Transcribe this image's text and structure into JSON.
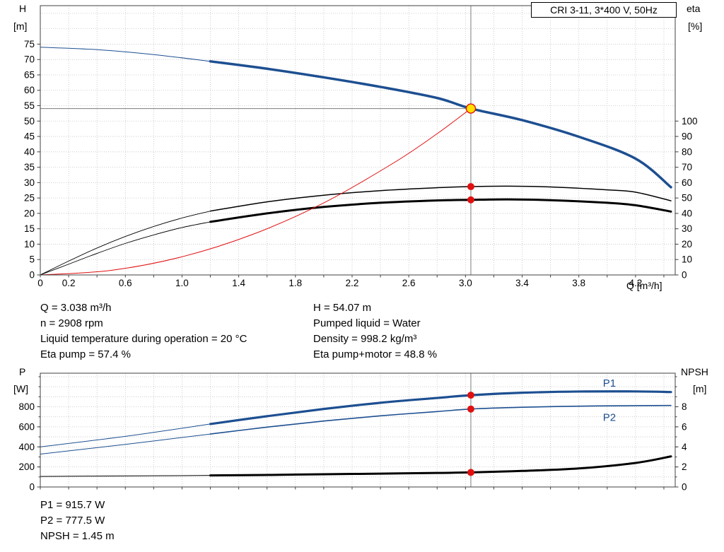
{
  "header": {
    "title_box": "CRI 3-11, 3*400 V, 50Hz"
  },
  "axis_labels": {
    "h": "H",
    "h_unit": "[m]",
    "eta": "eta",
    "eta_unit": "[%]",
    "q": "Q [m³/h]",
    "p": "P",
    "p_unit": "[W]",
    "npsh": "NPSH",
    "npsh_unit": "[m]"
  },
  "info_left": [
    "Q = 3.038 m³/h",
    "n = 2908 rpm",
    "Liquid temperature during operation = 20 °C",
    "Eta pump = 57.4 %"
  ],
  "info_right": [
    "H = 54.07 m",
    "Pumped liquid = Water",
    "Density = 998.2 kg/m³",
    "Eta pump+motor = 48.8 %"
  ],
  "bottom_info": [
    "P1 = 915.7 W",
    "P2 = 777.5 W",
    "NPSH = 1.45 m"
  ],
  "duty_point": {
    "Q_m3h": 3.038,
    "H_m": 54.07,
    "n_rpm": 2908,
    "eta_pump_pct": 57.4,
    "eta_pump_motor_pct": 48.8,
    "P1_W": 915.7,
    "P2_W": 777.5,
    "NPSH_m": 1.45
  },
  "colors": {
    "blue": "#1d4f91",
    "black": "#000000",
    "red": "#e01010",
    "yellow": "#ffe000",
    "grid": "#c2c2c2",
    "helper": "#7d7d7d"
  },
  "chart_data": [
    {
      "type": "line",
      "name": "head-efficiency-chart",
      "title": "CRI 3-11, 3*400 V, 50Hz",
      "x": {
        "label": "Q [m³/h]",
        "min": 0,
        "max": 4.48,
        "grid_step": 0.2,
        "label_ticks": [
          0,
          0.2,
          0.6,
          1,
          1.4,
          1.8,
          2.2,
          2.6,
          3,
          3.4,
          3.8,
          4.2
        ]
      },
      "y_left": {
        "label": "H [m]",
        "min": 0,
        "max": 87.5,
        "grid_step": 5,
        "grid_max": 85,
        "label_ticks": [
          0,
          5,
          10,
          15,
          20,
          25,
          30,
          35,
          40,
          45,
          50,
          55,
          60,
          65,
          70,
          75
        ]
      },
      "y_right": {
        "label": "eta [%]",
        "min": 0,
        "max": 175,
        "label_ticks": [
          0,
          10,
          20,
          30,
          40,
          50,
          60,
          70,
          80,
          90,
          100
        ]
      },
      "series": [
        {
          "name": "head-curve-extension",
          "axis": "left",
          "color": "blue",
          "width": 1,
          "points": [
            [
              0,
              74
            ],
            [
              0.4,
              73.2
            ],
            [
              0.8,
              71.6
            ],
            [
              1.2,
              69.4
            ]
          ]
        },
        {
          "name": "head-curve",
          "axis": "left",
          "color": "blue",
          "width": 3.5,
          "points": [
            [
              1.2,
              69.4
            ],
            [
              1.6,
              67.0
            ],
            [
              2.0,
              64.2
            ],
            [
              2.4,
              61.1
            ],
            [
              2.8,
              57.5
            ],
            [
              3.038,
              54.07
            ],
            [
              3.4,
              50.3
            ],
            [
              3.8,
              44.9
            ],
            [
              4.2,
              37.8
            ],
            [
              4.45,
              28.5
            ]
          ]
        },
        {
          "name": "eta-pump-extension",
          "axis": "right",
          "color": "black",
          "width": 0.9,
          "points": [
            [
              0,
              0
            ],
            [
              0.2,
              9
            ],
            [
              0.4,
              17.5
            ],
            [
              0.6,
              25
            ],
            [
              0.8,
              31.5
            ],
            [
              1.0,
              37
            ],
            [
              1.2,
              41.5
            ]
          ]
        },
        {
          "name": "eta-pump-curve",
          "axis": "right",
          "color": "black",
          "width": 1.5,
          "points": [
            [
              1.2,
              41.5
            ],
            [
              1.6,
              47.5
            ],
            [
              2.0,
              51.8
            ],
            [
              2.4,
              54.8
            ],
            [
              2.8,
              56.7
            ],
            [
              3.038,
              57.4
            ],
            [
              3.3,
              57.7
            ],
            [
              3.6,
              57.2
            ],
            [
              4.0,
              55.3
            ],
            [
              4.2,
              53.8
            ],
            [
              4.45,
              48.2
            ]
          ]
        },
        {
          "name": "eta-pump-motor-extension",
          "axis": "right",
          "color": "black",
          "width": 0.9,
          "points": [
            [
              0,
              0
            ],
            [
              0.2,
              7
            ],
            [
              0.4,
              14
            ],
            [
              0.6,
              20.5
            ],
            [
              0.8,
              26
            ],
            [
              1.0,
              30.8
            ],
            [
              1.2,
              34.5
            ]
          ]
        },
        {
          "name": "eta-pump-motor-curve",
          "axis": "right",
          "color": "black",
          "width": 3,
          "points": [
            [
              1.2,
              34.5
            ],
            [
              1.6,
              40.0
            ],
            [
              2.0,
              44.2
            ],
            [
              2.4,
              46.9
            ],
            [
              2.8,
              48.4
            ],
            [
              3.038,
              48.8
            ],
            [
              3.3,
              49.1
            ],
            [
              3.6,
              48.6
            ],
            [
              4.0,
              46.9
            ],
            [
              4.2,
              45.3
            ],
            [
              4.45,
              41.2
            ]
          ]
        },
        {
          "name": "system-curve",
          "axis": "left",
          "color": "red",
          "width": 1,
          "points": [
            [
              0,
              0
            ],
            [
              0.5,
              1.5
            ],
            [
              1.0,
              5.9
            ],
            [
              1.5,
              13.2
            ],
            [
              2.0,
              23.4
            ],
            [
              2.5,
              36.6
            ],
            [
              2.8,
              45.9
            ],
            [
              3.038,
              54.07
            ]
          ]
        }
      ],
      "helper_lines": [
        {
          "name": "duty-q-line",
          "type": "vertical",
          "x": 3.038
        },
        {
          "name": "duty-h-line",
          "type": "horizontal",
          "axis": "left",
          "y": 54.07,
          "x_end": 3.038
        }
      ],
      "markers": [
        {
          "name": "duty-point",
          "x": 3.038,
          "y": 54.07,
          "axis": "left",
          "style": "operating"
        },
        {
          "name": "eta-pump-point",
          "x": 3.038,
          "y": 57.4,
          "axis": "right",
          "style": "dot"
        },
        {
          "name": "eta-pump-motor-point",
          "x": 3.038,
          "y": 48.8,
          "axis": "right",
          "style": "dot"
        }
      ]
    },
    {
      "type": "line",
      "name": "power-npsh-chart",
      "x": {
        "min": 0,
        "max": 4.48,
        "grid_step": 0.2,
        "label_ticks": []
      },
      "y_left": {
        "label": "P [W]",
        "min": 0,
        "max": 1135,
        "grid_step": 100,
        "grid_max": 1100,
        "minor_step": 100,
        "label_ticks": [
          0,
          200,
          400,
          600,
          800
        ]
      },
      "y_right": {
        "label": "NPSH [m]",
        "min": 0,
        "max": 11.35,
        "minor_step": 1,
        "label_ticks": [
          0,
          2,
          4,
          6,
          8
        ]
      },
      "series": [
        {
          "name": "p1-extension",
          "axis": "left",
          "color": "blue",
          "width": 1,
          "points": [
            [
              0,
              400
            ],
            [
              0.6,
              505
            ],
            [
              1.2,
              628
            ]
          ]
        },
        {
          "name": "p1-curve",
          "axis": "left",
          "color": "blue",
          "width": 3.2,
          "points": [
            [
              1.2,
              628
            ],
            [
              1.6,
              706
            ],
            [
              2.0,
              778
            ],
            [
              2.4,
              840
            ],
            [
              2.8,
              888
            ],
            [
              3.038,
              915.7
            ],
            [
              3.4,
              940
            ],
            [
              3.8,
              952
            ],
            [
              4.2,
              953
            ],
            [
              4.45,
              947
            ]
          ]
        },
        {
          "name": "p2-extension",
          "axis": "left",
          "color": "blue",
          "width": 1,
          "points": [
            [
              0,
              328
            ],
            [
              0.6,
              425
            ],
            [
              1.2,
              528
            ]
          ]
        },
        {
          "name": "p2-curve",
          "axis": "left",
          "color": "blue",
          "width": 1.6,
          "points": [
            [
              1.2,
              528
            ],
            [
              1.6,
              597
            ],
            [
              2.0,
              658
            ],
            [
              2.4,
              710
            ],
            [
              2.8,
              752
            ],
            [
              3.038,
              777.5
            ],
            [
              3.4,
              795
            ],
            [
              3.8,
              806
            ],
            [
              4.2,
              811
            ],
            [
              4.45,
              813
            ]
          ]
        },
        {
          "name": "npsh-extension",
          "axis": "right",
          "color": "black",
          "width": 1,
          "points": [
            [
              0,
              1.05
            ],
            [
              0.6,
              1.1
            ],
            [
              1.2,
              1.15
            ]
          ]
        },
        {
          "name": "npsh-curve",
          "axis": "right",
          "color": "black",
          "width": 3,
          "points": [
            [
              1.2,
              1.15
            ],
            [
              1.6,
              1.2
            ],
            [
              2.0,
              1.27
            ],
            [
              2.4,
              1.33
            ],
            [
              2.8,
              1.4
            ],
            [
              3.038,
              1.45
            ],
            [
              3.4,
              1.6
            ],
            [
              3.8,
              1.85
            ],
            [
              4.2,
              2.4
            ],
            [
              4.45,
              3.05
            ]
          ]
        }
      ],
      "helper_lines": [
        {
          "name": "duty-q-line",
          "type": "vertical",
          "x": 3.038
        }
      ],
      "markers": [
        {
          "name": "p1-point",
          "x": 3.038,
          "y": 915.7,
          "axis": "left",
          "style": "dot"
        },
        {
          "name": "p2-point",
          "x": 3.038,
          "y": 777.5,
          "axis": "left",
          "style": "dot"
        },
        {
          "name": "npsh-point",
          "x": 3.038,
          "y": 1.45,
          "axis": "right",
          "style": "dot"
        }
      ],
      "series_labels": [
        {
          "text": "P1",
          "x": 3.97,
          "y": 1000,
          "axis": "left",
          "color": "blue"
        },
        {
          "text": "P2",
          "x": 3.97,
          "y": 660,
          "axis": "left",
          "color": "blue"
        }
      ]
    }
  ]
}
